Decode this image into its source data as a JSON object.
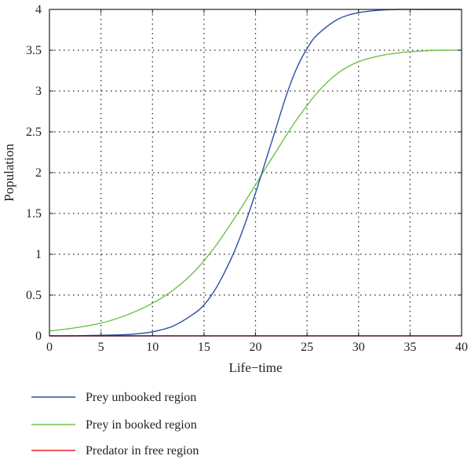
{
  "chart_data": {
    "type": "line",
    "xlabel": "Life−time",
    "ylabel": "Population",
    "xlim": [
      0,
      40
    ],
    "ylim": [
      0,
      4
    ],
    "x_ticks": [
      0,
      5,
      10,
      15,
      20,
      25,
      30,
      35,
      40
    ],
    "y_ticks": [
      0,
      0.5,
      1,
      1.5,
      2,
      2.5,
      3,
      3.5,
      4
    ],
    "x_tick_labels": [
      "0",
      "5",
      "10",
      "15",
      "20",
      "25",
      "30",
      "35",
      "40"
    ],
    "y_tick_labels": [
      "0",
      "0.5",
      "1",
      "1.5",
      "2",
      "2.5",
      "3",
      "3.5",
      "4"
    ],
    "grid": true,
    "legend_position": "below plot",
    "series": [
      {
        "name": "Prey unbooked region",
        "color": "#2b4ea2",
        "x": [
          0,
          2,
          4,
          6,
          8,
          10,
          12,
          14,
          15,
          16,
          17,
          18,
          19,
          20,
          21,
          22,
          23,
          24,
          25,
          26,
          28,
          30,
          32,
          34,
          36,
          38,
          40
        ],
        "y": [
          0.0,
          0.0,
          0.005,
          0.01,
          0.02,
          0.05,
          0.12,
          0.27,
          0.38,
          0.55,
          0.78,
          1.05,
          1.38,
          1.75,
          2.15,
          2.55,
          2.95,
          3.28,
          3.52,
          3.69,
          3.88,
          3.96,
          3.99,
          4.0,
          4.0,
          4.0,
          4.0
        ]
      },
      {
        "name": "Prey in booked region",
        "color": "#6cc24a",
        "x": [
          0,
          2,
          4,
          6,
          8,
          10,
          12,
          14,
          16,
          18,
          20,
          21,
          22,
          24,
          26,
          28,
          30,
          32,
          34,
          36,
          38,
          40
        ],
        "y": [
          0.06,
          0.09,
          0.13,
          0.19,
          0.28,
          0.4,
          0.56,
          0.78,
          1.08,
          1.45,
          1.85,
          2.06,
          2.26,
          2.65,
          2.98,
          3.22,
          3.36,
          3.43,
          3.47,
          3.49,
          3.5,
          3.5
        ]
      },
      {
        "name": "Predator in free region",
        "color": "#e8202a",
        "x": [
          0,
          40
        ],
        "y": [
          0,
          0
        ]
      }
    ]
  }
}
